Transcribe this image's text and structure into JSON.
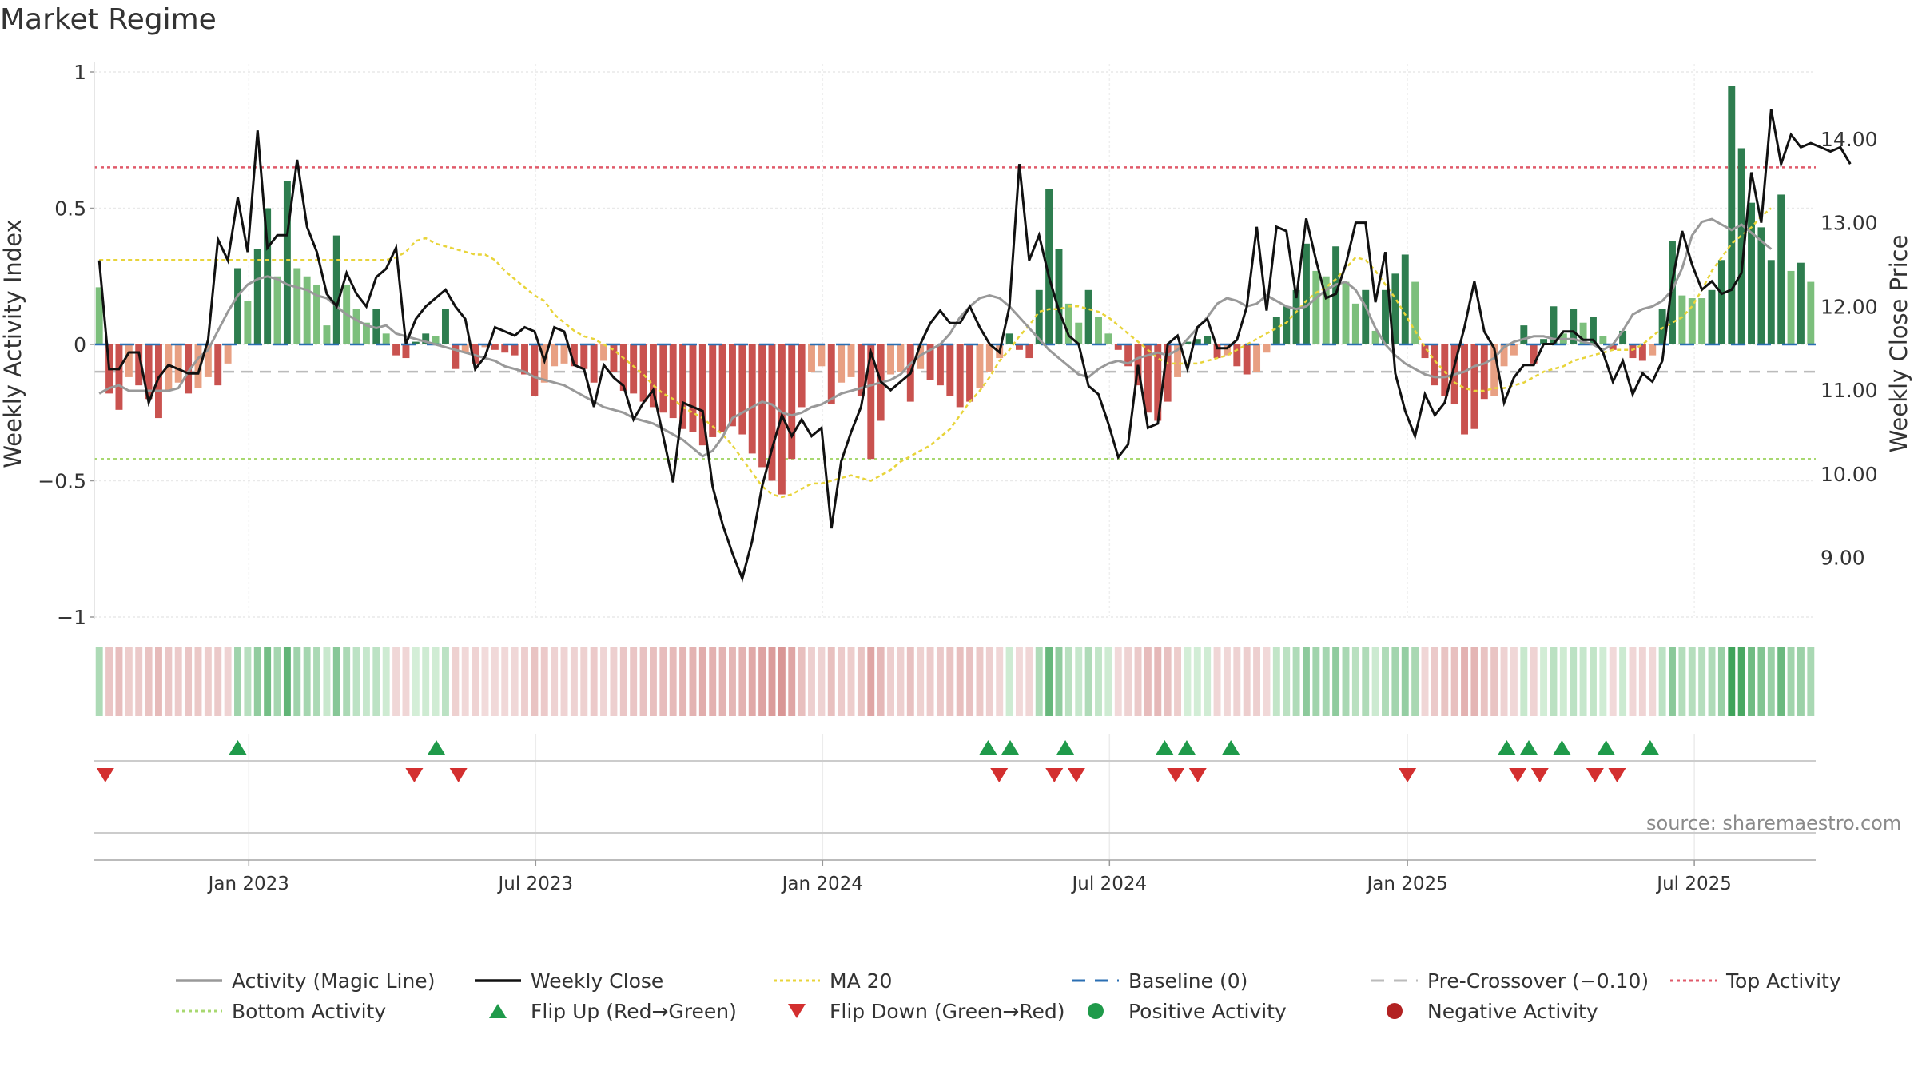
{
  "page": {
    "title": "Market Regime",
    "source": "source: sharemaestro.com"
  },
  "colors": {
    "strong_green": "#2e7d4f",
    "light_green": "#7cbf7c",
    "strong_red": "#c9524f",
    "light_red": "#e8a083",
    "magic_line": "#999999",
    "weekly_close": "#111111",
    "ma20": "#e8d43a",
    "baseline": "#2b6fb3",
    "pre_crossover": "#bbbbbb",
    "top_activity": "#e05a6a",
    "bottom_activity": "#a8d870",
    "flip_up": "#1f9a4a",
    "flip_down": "#d32f2f"
  },
  "chart_data": {
    "type": "bar",
    "title": "Market Regime",
    "ylabel_left": "Weekly Activity Index",
    "ylabel_right": "Weekly Close Price",
    "ylim_left": [
      -1,
      1
    ],
    "yticks_left": [
      {
        "value": 1,
        "label": "1"
      },
      {
        "value": 0.5,
        "label": "0.5"
      },
      {
        "value": 0,
        "label": "0"
      },
      {
        "value": -0.5,
        "label": "−0.5"
      },
      {
        "value": -1,
        "label": "−1"
      }
    ],
    "ylim_right": [
      8.3,
      14.8
    ],
    "yticks_right": [
      {
        "value": 9,
        "label": "9.00"
      },
      {
        "value": 10,
        "label": "10.00"
      },
      {
        "value": 11,
        "label": "11.00"
      },
      {
        "value": 12,
        "label": "12.00"
      },
      {
        "value": 13,
        "label": "13.00"
      },
      {
        "value": 14,
        "label": "14.00"
      }
    ],
    "x_start": "2022-09-26",
    "x_end": "2025-09-22",
    "xticks": [
      {
        "date": "2023-01-02",
        "label": "Jan 2023"
      },
      {
        "date": "2023-07-03",
        "label": "Jul 2023"
      },
      {
        "date": "2024-01-01",
        "label": "Jan 2024"
      },
      {
        "date": "2024-07-01",
        "label": "Jul 2024"
      },
      {
        "date": "2025-01-06",
        "label": "Jan 2025"
      },
      {
        "date": "2025-07-07",
        "label": "Jul 2025"
      }
    ],
    "top_activity": 0.65,
    "bottom_activity": -0.42,
    "pre_crossover": -0.1,
    "baseline": 0,
    "activity": [
      0.21,
      -0.18,
      -0.24,
      -0.12,
      -0.15,
      -0.2,
      -0.27,
      -0.17,
      -0.14,
      -0.18,
      -0.16,
      -0.12,
      -0.15,
      -0.07,
      0.28,
      0.16,
      0.35,
      0.5,
      0.25,
      0.6,
      0.28,
      0.25,
      0.22,
      0.07,
      0.4,
      0.22,
      0.13,
      0.08,
      0.13,
      0.04,
      -0.04,
      -0.05,
      0.01,
      0.04,
      0.03,
      0.13,
      -0.09,
      -0.03,
      -0.07,
      -0.01,
      -0.02,
      -0.03,
      -0.04,
      -0.11,
      -0.19,
      -0.14,
      -0.08,
      -0.07,
      -0.08,
      -0.09,
      -0.14,
      -0.06,
      -0.1,
      -0.17,
      -0.18,
      -0.21,
      -0.23,
      -0.25,
      -0.27,
      -0.31,
      -0.32,
      -0.37,
      -0.34,
      -0.32,
      -0.3,
      -0.33,
      -0.4,
      -0.45,
      -0.5,
      -0.55,
      -0.42,
      -0.23,
      -0.1,
      -0.08,
      -0.22,
      -0.14,
      -0.12,
      -0.19,
      -0.42,
      -0.28,
      -0.11,
      -0.1,
      -0.21,
      -0.09,
      -0.13,
      -0.15,
      -0.19,
      -0.23,
      -0.21,
      -0.16,
      -0.1,
      -0.05,
      0.04,
      -0.02,
      -0.05,
      0.2,
      0.57,
      0.35,
      0.15,
      0.08,
      0.2,
      0.1,
      0.04,
      -0.02,
      -0.08,
      -0.15,
      -0.25,
      -0.28,
      -0.21,
      -0.12,
      0.01,
      0.02,
      0.03,
      -0.05,
      -0.04,
      -0.08,
      -0.11,
      -0.1,
      -0.03,
      0.1,
      0.14,
      0.2,
      0.37,
      0.27,
      0.25,
      0.36,
      0.23,
      0.15,
      0.2,
      0.05,
      0.2,
      0.26,
      0.33,
      0.23,
      -0.05,
      -0.15,
      -0.19,
      -0.22,
      -0.33,
      -0.31,
      -0.2,
      -0.19,
      -0.08,
      -0.04,
      0.07,
      -0.07,
      0.02,
      0.14,
      0.04,
      0.13,
      0.08,
      0.1,
      0.03,
      -0.02,
      0.05,
      -0.05,
      -0.06,
      -0.04,
      0.13,
      0.38,
      0.18,
      0.17,
      0.17,
      0.2,
      0.31,
      0.95,
      0.72,
      0.52,
      0.43,
      0.31,
      0.55,
      0.27,
      0.3,
      0.23
    ],
    "weekly_close": [
      12.55,
      11.25,
      11.25,
      11.45,
      11.45,
      10.85,
      11.15,
      11.3,
      11.25,
      11.2,
      11.2,
      11.6,
      12.8,
      12.55,
      13.3,
      12.65,
      14.1,
      12.7,
      12.85,
      12.85,
      13.75,
      12.95,
      12.65,
      12.15,
      12.0,
      12.4,
      12.15,
      12.0,
      12.35,
      12.45,
      12.7,
      11.55,
      11.85,
      12.0,
      12.1,
      12.2,
      12.0,
      11.85,
      11.25,
      11.4,
      11.75,
      11.7,
      11.65,
      11.75,
      11.7,
      11.35,
      11.75,
      11.7,
      11.3,
      11.25,
      10.8,
      11.3,
      11.15,
      11.05,
      10.65,
      10.85,
      11.0,
      10.45,
      9.9,
      10.85,
      10.8,
      10.75,
      9.85,
      9.4,
      9.05,
      8.75,
      9.2,
      9.85,
      10.3,
      10.7,
      10.45,
      10.65,
      10.45,
      10.55,
      9.35,
      10.15,
      10.5,
      10.8,
      11.45,
      11.1,
      11.0,
      11.1,
      11.2,
      11.55,
      11.8,
      11.95,
      11.8,
      11.8,
      12.0,
      11.75,
      11.55,
      11.45,
      12.0,
      13.7,
      12.55,
      12.85,
      12.35,
      11.95,
      11.65,
      11.55,
      11.05,
      10.95,
      10.6,
      10.2,
      10.35,
      11.3,
      10.55,
      10.6,
      11.55,
      11.65,
      11.25,
      11.75,
      11.85,
      11.5,
      11.5,
      11.6,
      12.0,
      12.95,
      11.95,
      12.95,
      12.9,
      12.1,
      13.05,
      12.55,
      12.1,
      12.15,
      12.5,
      13.0,
      13.0,
      12.05,
      12.65,
      11.2,
      10.75,
      10.45,
      10.95,
      10.7,
      10.85,
      11.3,
      11.75,
      12.3,
      11.7,
      11.5,
      10.85,
      11.15,
      11.3,
      11.3,
      11.55,
      11.55,
      11.7,
      11.7,
      11.6,
      11.6,
      11.45,
      11.1,
      11.35,
      10.95,
      11.2,
      11.1,
      11.35,
      12.3,
      12.9,
      12.5,
      12.2,
      12.3,
      12.15,
      12.2,
      12.4,
      13.6,
      13.0,
      14.35,
      13.7,
      14.05,
      13.9,
      13.95,
      13.9,
      13.85,
      13.9,
      13.7
    ],
    "magic_line": [
      -0.18,
      -0.16,
      -0.15,
      -0.17,
      -0.17,
      -0.17,
      -0.17,
      -0.17,
      -0.16,
      -0.1,
      -0.05,
      -0.02,
      0.05,
      0.12,
      0.18,
      0.22,
      0.24,
      0.25,
      0.24,
      0.22,
      0.21,
      0.2,
      0.18,
      0.17,
      0.14,
      0.11,
      0.09,
      0.07,
      0.06,
      0.07,
      0.04,
      0.03,
      0.02,
      0.01,
      0.0,
      -0.01,
      -0.02,
      -0.03,
      -0.04,
      -0.05,
      -0.06,
      -0.08,
      -0.09,
      -0.1,
      -0.12,
      -0.13,
      -0.14,
      -0.15,
      -0.17,
      -0.19,
      -0.21,
      -0.23,
      -0.24,
      -0.25,
      -0.27,
      -0.28,
      -0.29,
      -0.31,
      -0.33,
      -0.35,
      -0.38,
      -0.41,
      -0.39,
      -0.34,
      -0.27,
      -0.25,
      -0.23,
      -0.21,
      -0.22,
      -0.25,
      -0.26,
      -0.25,
      -0.23,
      -0.22,
      -0.2,
      -0.18,
      -0.17,
      -0.16,
      -0.15,
      -0.14,
      -0.13,
      -0.11,
      -0.07,
      -0.04,
      -0.02,
      0.0,
      0.04,
      0.1,
      0.14,
      0.17,
      0.18,
      0.17,
      0.14,
      0.1,
      0.06,
      0.02,
      -0.02,
      -0.05,
      -0.08,
      -0.11,
      -0.12,
      -0.09,
      -0.07,
      -0.06,
      -0.07,
      -0.05,
      -0.04,
      -0.03,
      -0.04,
      -0.02,
      0.02,
      0.06,
      0.1,
      0.15,
      0.17,
      0.16,
      0.14,
      0.15,
      0.18,
      0.16,
      0.14,
      0.13,
      0.14,
      0.17,
      0.2,
      0.22,
      0.23,
      0.2,
      0.14,
      0.06,
      0.0,
      -0.04,
      -0.07,
      -0.09,
      -0.11,
      -0.12,
      -0.12,
      -0.11,
      -0.1,
      -0.08,
      -0.07,
      -0.05,
      -0.01,
      0.01,
      0.02,
      0.03,
      0.03,
      0.02,
      0.02,
      0.02,
      0.01,
      0.0,
      -0.02,
      0.0,
      0.05,
      0.11,
      0.13,
      0.14,
      0.16,
      0.2,
      0.28,
      0.4,
      0.45,
      0.46,
      0.44,
      0.42,
      0.44,
      0.41,
      0.38,
      0.35
    ],
    "ma20_activity": [
      0.31,
      0.31,
      0.31,
      0.31,
      0.31,
      0.31,
      0.31,
      0.31,
      0.31,
      0.31,
      0.31,
      0.31,
      0.31,
      0.31,
      0.31,
      0.31,
      0.31,
      0.31,
      0.31,
      0.31,
      0.31,
      0.31,
      0.31,
      0.31,
      0.31,
      0.31,
      0.31,
      0.31,
      0.31,
      0.31,
      0.32,
      0.34,
      0.38,
      0.39,
      0.37,
      0.36,
      0.35,
      0.34,
      0.33,
      0.33,
      0.31,
      0.27,
      0.24,
      0.21,
      0.18,
      0.16,
      0.11,
      0.08,
      0.05,
      0.03,
      0.02,
      0.0,
      -0.02,
      -0.05,
      -0.08,
      -0.11,
      -0.15,
      -0.18,
      -0.2,
      -0.23,
      -0.25,
      -0.27,
      -0.3,
      -0.33,
      -0.37,
      -0.42,
      -0.47,
      -0.52,
      -0.55,
      -0.56,
      -0.55,
      -0.53,
      -0.51,
      -0.51,
      -0.5,
      -0.49,
      -0.48,
      -0.49,
      -0.5,
      -0.48,
      -0.46,
      -0.43,
      -0.41,
      -0.39,
      -0.37,
      -0.34,
      -0.31,
      -0.26,
      -0.21,
      -0.17,
      -0.12,
      -0.06,
      -0.02,
      0.03,
      0.07,
      0.12,
      0.13,
      0.13,
      0.14,
      0.14,
      0.13,
      0.12,
      0.1,
      0.07,
      0.04,
      0.01,
      -0.02,
      -0.05,
      -0.07,
      -0.07,
      -0.07,
      -0.07,
      -0.06,
      -0.05,
      -0.04,
      -0.02,
      0.0,
      0.02,
      0.04,
      0.06,
      0.08,
      0.12,
      0.16,
      0.19,
      0.21,
      0.24,
      0.28,
      0.32,
      0.31,
      0.27,
      0.22,
      0.17,
      0.11,
      0.05,
      -0.01,
      -0.06,
      -0.1,
      -0.14,
      -0.16,
      -0.17,
      -0.17,
      -0.16,
      -0.16,
      -0.15,
      -0.14,
      -0.12,
      -0.1,
      -0.09,
      -0.08,
      -0.06,
      -0.05,
      -0.04,
      -0.03,
      -0.02,
      -0.02,
      -0.02,
      0.0,
      0.03,
      0.06,
      0.08,
      0.1,
      0.14,
      0.2,
      0.27,
      0.32,
      0.37,
      0.4,
      0.43,
      0.47,
      0.5
    ],
    "flip_up_dates": [
      "2022-12-26",
      "2023-05-01",
      "2024-04-15",
      "2024-04-29",
      "2024-06-03",
      "2024-08-05",
      "2024-08-19",
      "2024-09-16",
      "2025-03-10",
      "2025-03-24",
      "2025-04-14",
      "2025-05-12",
      "2025-06-09"
    ],
    "flip_down_dates": [
      "2022-10-03",
      "2023-04-17",
      "2023-05-15",
      "2024-04-22",
      "2024-05-27",
      "2024-06-10",
      "2024-08-12",
      "2024-08-26",
      "2025-01-06",
      "2025-03-17",
      "2025-03-31",
      "2025-05-05",
      "2025-05-19"
    ],
    "legend": {
      "position": "bottom",
      "items": [
        {
          "key": "magic",
          "label": "Activity (Magic Line)",
          "symbol": "line",
          "color": "#999999"
        },
        {
          "key": "close",
          "label": "Weekly Close",
          "symbol": "line",
          "color": "#111111"
        },
        {
          "key": "ma20",
          "label": "MA 20",
          "symbol": "dotted",
          "color": "#e8d43a"
        },
        {
          "key": "base",
          "label": "Baseline (0)",
          "symbol": "dashed",
          "color": "#2b6fb3"
        },
        {
          "key": "pre",
          "label": "Pre-Crossover (−0.10)",
          "symbol": "dashed",
          "color": "#bbbbbb"
        },
        {
          "key": "top",
          "label": "Top Activity",
          "symbol": "dotted",
          "color": "#e05a6a"
        },
        {
          "key": "bottom",
          "label": "Bottom Activity",
          "symbol": "dotted",
          "color": "#a8d870"
        },
        {
          "key": "flipup",
          "label": "Flip Up (Red→Green)",
          "symbol": "triangle-up",
          "color": "#1f9a4a"
        },
        {
          "key": "flipdown",
          "label": "Flip Down (Green→Red)",
          "symbol": "triangle-down",
          "color": "#d32f2f"
        },
        {
          "key": "pos",
          "label": "Positive Activity",
          "symbol": "dot",
          "color": "#1f9a4a"
        },
        {
          "key": "neg",
          "label": "Negative Activity",
          "symbol": "dot",
          "color": "#b22222"
        }
      ]
    }
  }
}
